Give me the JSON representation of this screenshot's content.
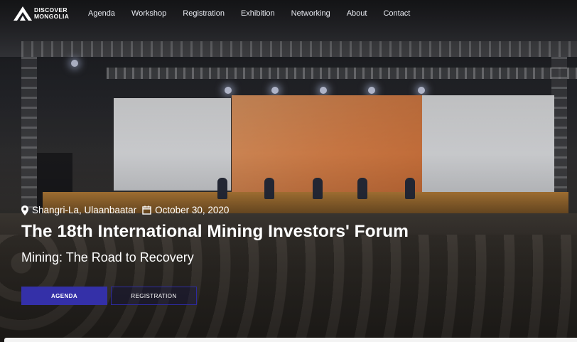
{
  "brand": {
    "logo_line1": "DISCOVER",
    "logo_line2": "MONGOLIA",
    "logo_icon": "mountain-logo-icon"
  },
  "nav": {
    "items": [
      "Agenda",
      "Workshop",
      "Registration",
      "Exhibition",
      "Networking",
      "About",
      "Contact"
    ]
  },
  "hero": {
    "location": "Shangri-La, Ulaanbaatar",
    "location_icon": "map-pin-icon",
    "date": "October 30, 2020",
    "date_icon": "calendar-icon",
    "title": "The 18th International Mining Investors' Forum",
    "subtitle": "Mining: The Road to Recovery"
  },
  "buttons": {
    "agenda": "AGENDA",
    "registration": "REGISTRATION"
  },
  "colors": {
    "primary_button": "#3430a8",
    "text": "#ffffff"
  }
}
